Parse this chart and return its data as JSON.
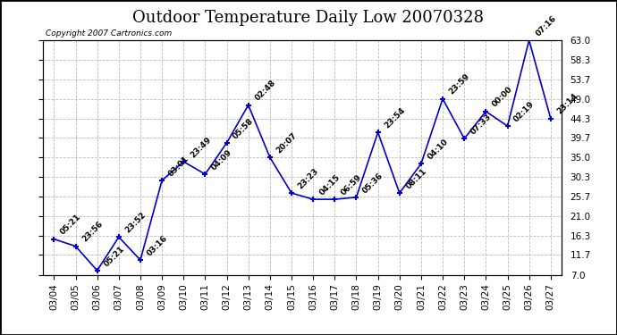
{
  "title": "Outdoor Temperature Daily Low 20070328",
  "copyright": "Copyright 2007 Cartronics.com",
  "line_color": "#0000CC",
  "marker_color": "#0000CC",
  "bg_color": "#ffffff",
  "grid_color": "#bbbbbb",
  "x_labels": [
    "03/04",
    "03/05",
    "03/06",
    "03/07",
    "03/08",
    "03/09",
    "03/10",
    "03/11",
    "03/12",
    "03/13",
    "03/14",
    "03/15",
    "03/16",
    "03/17",
    "03/18",
    "03/19",
    "03/20",
    "03/21",
    "03/22",
    "03/23",
    "03/24",
    "03/25",
    "03/26",
    "03/27"
  ],
  "y_values": [
    15.5,
    13.8,
    8.0,
    16.0,
    10.5,
    29.5,
    34.0,
    31.0,
    38.5,
    47.5,
    35.0,
    26.5,
    25.0,
    25.0,
    25.5,
    41.0,
    26.5,
    33.5,
    49.0,
    39.5,
    46.0,
    42.5,
    63.0,
    44.3
  ],
  "time_labels": [
    "05:21",
    "23:56",
    "05:21",
    "23:52",
    "03:16",
    "03:01",
    "23:49",
    "04:09",
    "05:58",
    "02:48",
    "20:07",
    "23:23",
    "04:15",
    "06:59",
    "05:36",
    "23:54",
    "08:11",
    "04:10",
    "23:59",
    "07:33",
    "00:00",
    "02:19",
    "07:16",
    "23:14"
  ],
  "y_ticks": [
    7.0,
    11.7,
    16.3,
    21.0,
    25.7,
    30.3,
    35.0,
    39.7,
    44.3,
    49.0,
    53.7,
    58.3,
    63.0
  ],
  "ylim": [
    7.0,
    63.0
  ],
  "title_fontsize": 13,
  "label_fontsize": 6.5,
  "tick_fontsize": 7.5,
  "copyright_fontsize": 6.5
}
